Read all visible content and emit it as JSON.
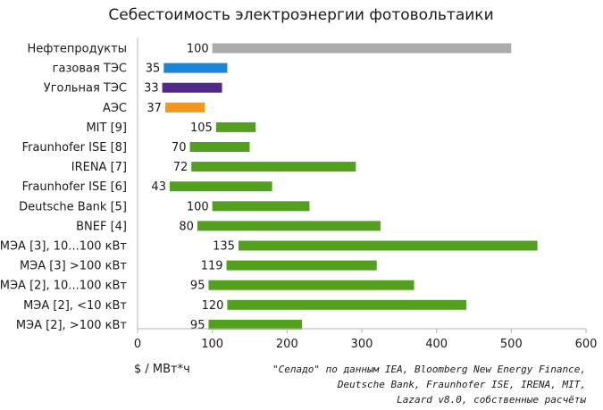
{
  "chart_data": {
    "type": "bar",
    "orientation": "horizontal-range",
    "title": "Себестоимость электроэнергии фотовольтаики",
    "unit_label": "$ / МВт*ч",
    "xlim": [
      0,
      600
    ],
    "x_ticks": [
      "0",
      "100",
      "200",
      "300",
      "400",
      "500",
      "600"
    ],
    "grid": false,
    "source_lines": [
      "\"Селадо\" по данным IEA, Bloomberg New Energy Finance,",
      "Deutsche Bank, Fraunhofer ISE, IRENA, MIT,",
      "Lazard v8.0, собственные расчёты"
    ],
    "colors": {
      "oil": "#ababab",
      "gas": "#1a85d6",
      "coal": "#512a87",
      "nuclear": "#f5961c",
      "solar": "#52a01e"
    },
    "categories": [
      "Нефтепродукты",
      "газовая ТЭС",
      "Угольная ТЭС",
      "АЭС",
      "MIT [9]",
      "Fraunhofer ISE [8]",
      "IRENA [7]",
      "Fraunhofer ISE [6]",
      "Deutsche Bank [5]",
      "BNEF [4]",
      "МЭА [3], 10...100 кВт",
      "МЭА [3] >100 кВт",
      "МЭА [2], 10...100 кВт",
      "МЭА [2], <10 кВт",
      "МЭА [2], >100 кВт"
    ],
    "ranges": [
      {
        "min": 100,
        "max": 500,
        "label": "100",
        "color_key": "oil"
      },
      {
        "min": 35,
        "max": 120,
        "label": "35",
        "color_key": "gas"
      },
      {
        "min": 33,
        "max": 113,
        "label": "33",
        "color_key": "coal"
      },
      {
        "min": 37,
        "max": 90,
        "label": "37",
        "color_key": "nuclear"
      },
      {
        "min": 105,
        "max": 158,
        "label": "105",
        "color_key": "solar"
      },
      {
        "min": 70,
        "max": 150,
        "label": "70",
        "color_key": "solar"
      },
      {
        "min": 72,
        "max": 292,
        "label": "72",
        "color_key": "solar"
      },
      {
        "min": 43,
        "max": 180,
        "label": "43",
        "color_key": "solar"
      },
      {
        "min": 100,
        "max": 230,
        "label": "100",
        "color_key": "solar"
      },
      {
        "min": 80,
        "max": 325,
        "label": "80",
        "color_key": "solar"
      },
      {
        "min": 135,
        "max": 535,
        "label": "135",
        "color_key": "solar"
      },
      {
        "min": 119,
        "max": 320,
        "label": "119",
        "color_key": "solar"
      },
      {
        "min": 95,
        "max": 370,
        "label": "95",
        "color_key": "solar"
      },
      {
        "min": 120,
        "max": 440,
        "label": "120",
        "color_key": "solar"
      },
      {
        "min": 95,
        "max": 220,
        "label": "95",
        "color_key": "solar"
      }
    ]
  }
}
